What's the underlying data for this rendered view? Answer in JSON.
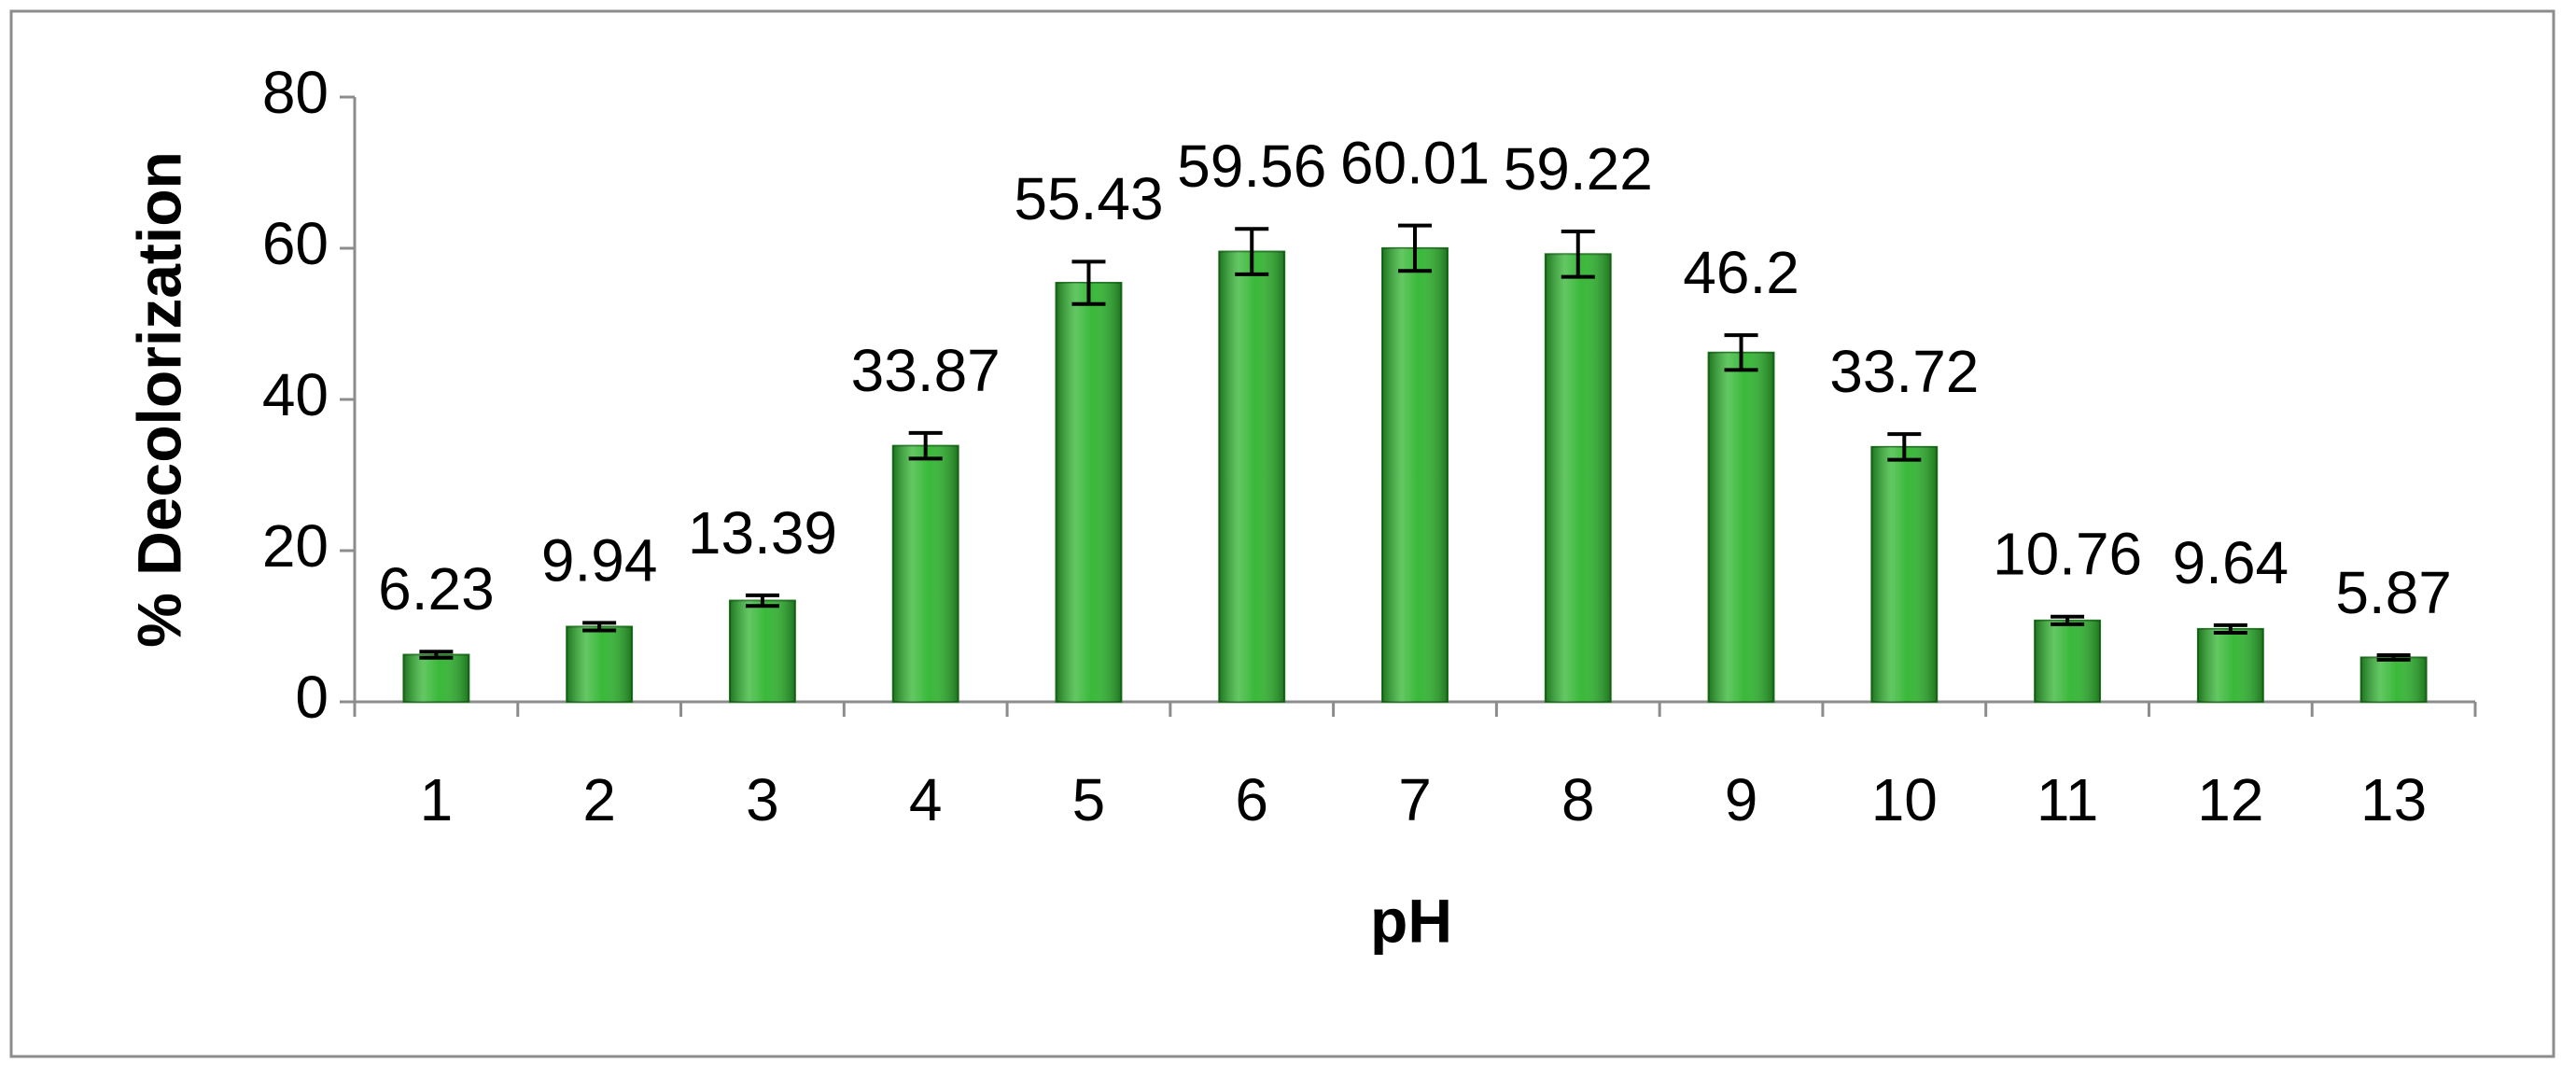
{
  "chart_data": {
    "type": "bar",
    "x_label": "pH",
    "y_label": "% Decolorization",
    "categories": [
      "1",
      "2",
      "3",
      "4",
      "5",
      "6",
      "7",
      "8",
      "9",
      "10",
      "11",
      "12",
      "13"
    ],
    "values": [
      6.23,
      9.94,
      13.39,
      33.87,
      55.43,
      59.56,
      60.01,
      59.22,
      46.2,
      33.72,
      10.76,
      9.64,
      5.87
    ],
    "errors": [
      0.4,
      0.5,
      0.7,
      1.7,
      2.8,
      3.0,
      3.0,
      3.0,
      2.3,
      1.7,
      0.5,
      0.5,
      0.3
    ],
    "color": "#2fb52f",
    "ylim": [
      0,
      80
    ],
    "yticks": [
      0,
      20,
      40,
      60,
      80
    ],
    "grid": false
  }
}
